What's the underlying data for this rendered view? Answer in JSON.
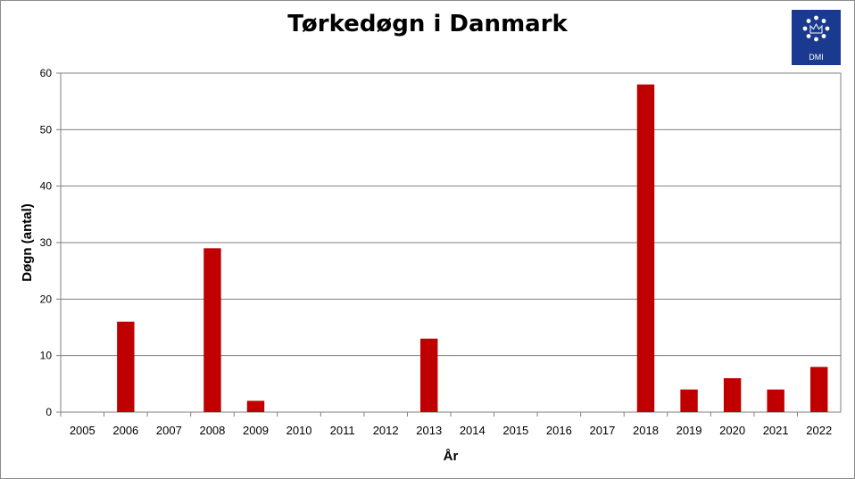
{
  "chart_data": {
    "type": "bar",
    "title": "Tørkedøgn i Danmark",
    "xlabel": "År",
    "ylabel": "Døgn (antal)",
    "categories": [
      "2005",
      "2006",
      "2007",
      "2008",
      "2009",
      "2010",
      "2011",
      "2012",
      "2013",
      "2014",
      "2015",
      "2016",
      "2017",
      "2018",
      "2019",
      "2020",
      "2021",
      "2022"
    ],
    "values": [
      0,
      16,
      0,
      29,
      2,
      0,
      0,
      0,
      13,
      0,
      0,
      0,
      0,
      58,
      4,
      6,
      4,
      8
    ],
    "ylim": [
      0,
      60
    ],
    "yticks": [
      0,
      10,
      20,
      30,
      40,
      50,
      60
    ],
    "grid": true,
    "bar_color": "#c00000"
  },
  "logo": {
    "text": "DMI",
    "color": "#1a3a8f"
  }
}
